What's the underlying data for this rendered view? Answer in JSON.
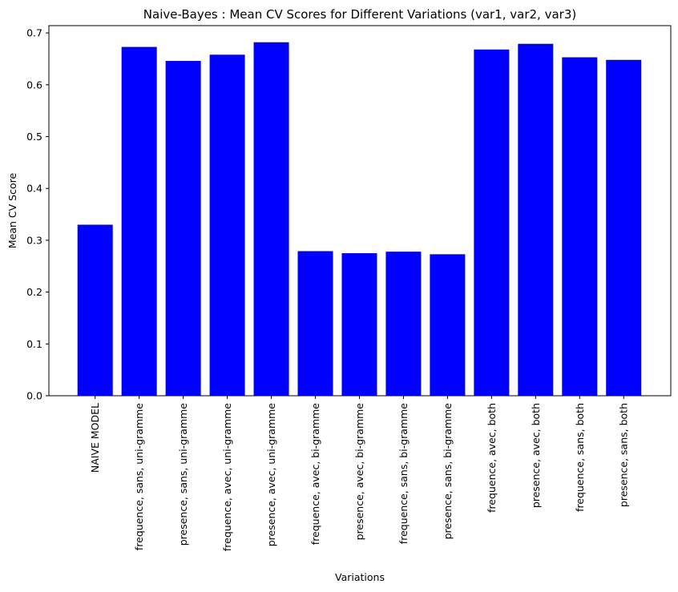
{
  "chart_data": {
    "type": "bar",
    "title": "Naive-Bayes : Mean CV Scores for Different Variations (var1, var2, var3)",
    "xlabel": "Variations",
    "ylabel": "Mean CV Score",
    "categories": [
      "NAIVE MODEL",
      "frequence, sans, uni-gramme",
      "presence, sans, uni-gramme",
      "frequence, avec, uni-gramme",
      "presence, avec, uni-gramme",
      "frequence, avec, bi-gramme",
      "presence, avec, bi-gramme",
      "frequence, sans, bi-gramme",
      "presence, sans, bi-gramme",
      "frequence, avec, both",
      "presence, avec, both",
      "frequence, sans, both",
      "presence, sans, both"
    ],
    "values": [
      0.33,
      0.673,
      0.646,
      0.658,
      0.682,
      0.279,
      0.275,
      0.278,
      0.273,
      0.668,
      0.679,
      0.653,
      0.648
    ],
    "ylim": [
      0,
      0.72
    ],
    "yticks": [
      "0.0",
      "0.1",
      "0.2",
      "0.3",
      "0.4",
      "0.5",
      "0.6",
      "0.7"
    ],
    "bar_color": "#0000ff",
    "grid": false
  }
}
